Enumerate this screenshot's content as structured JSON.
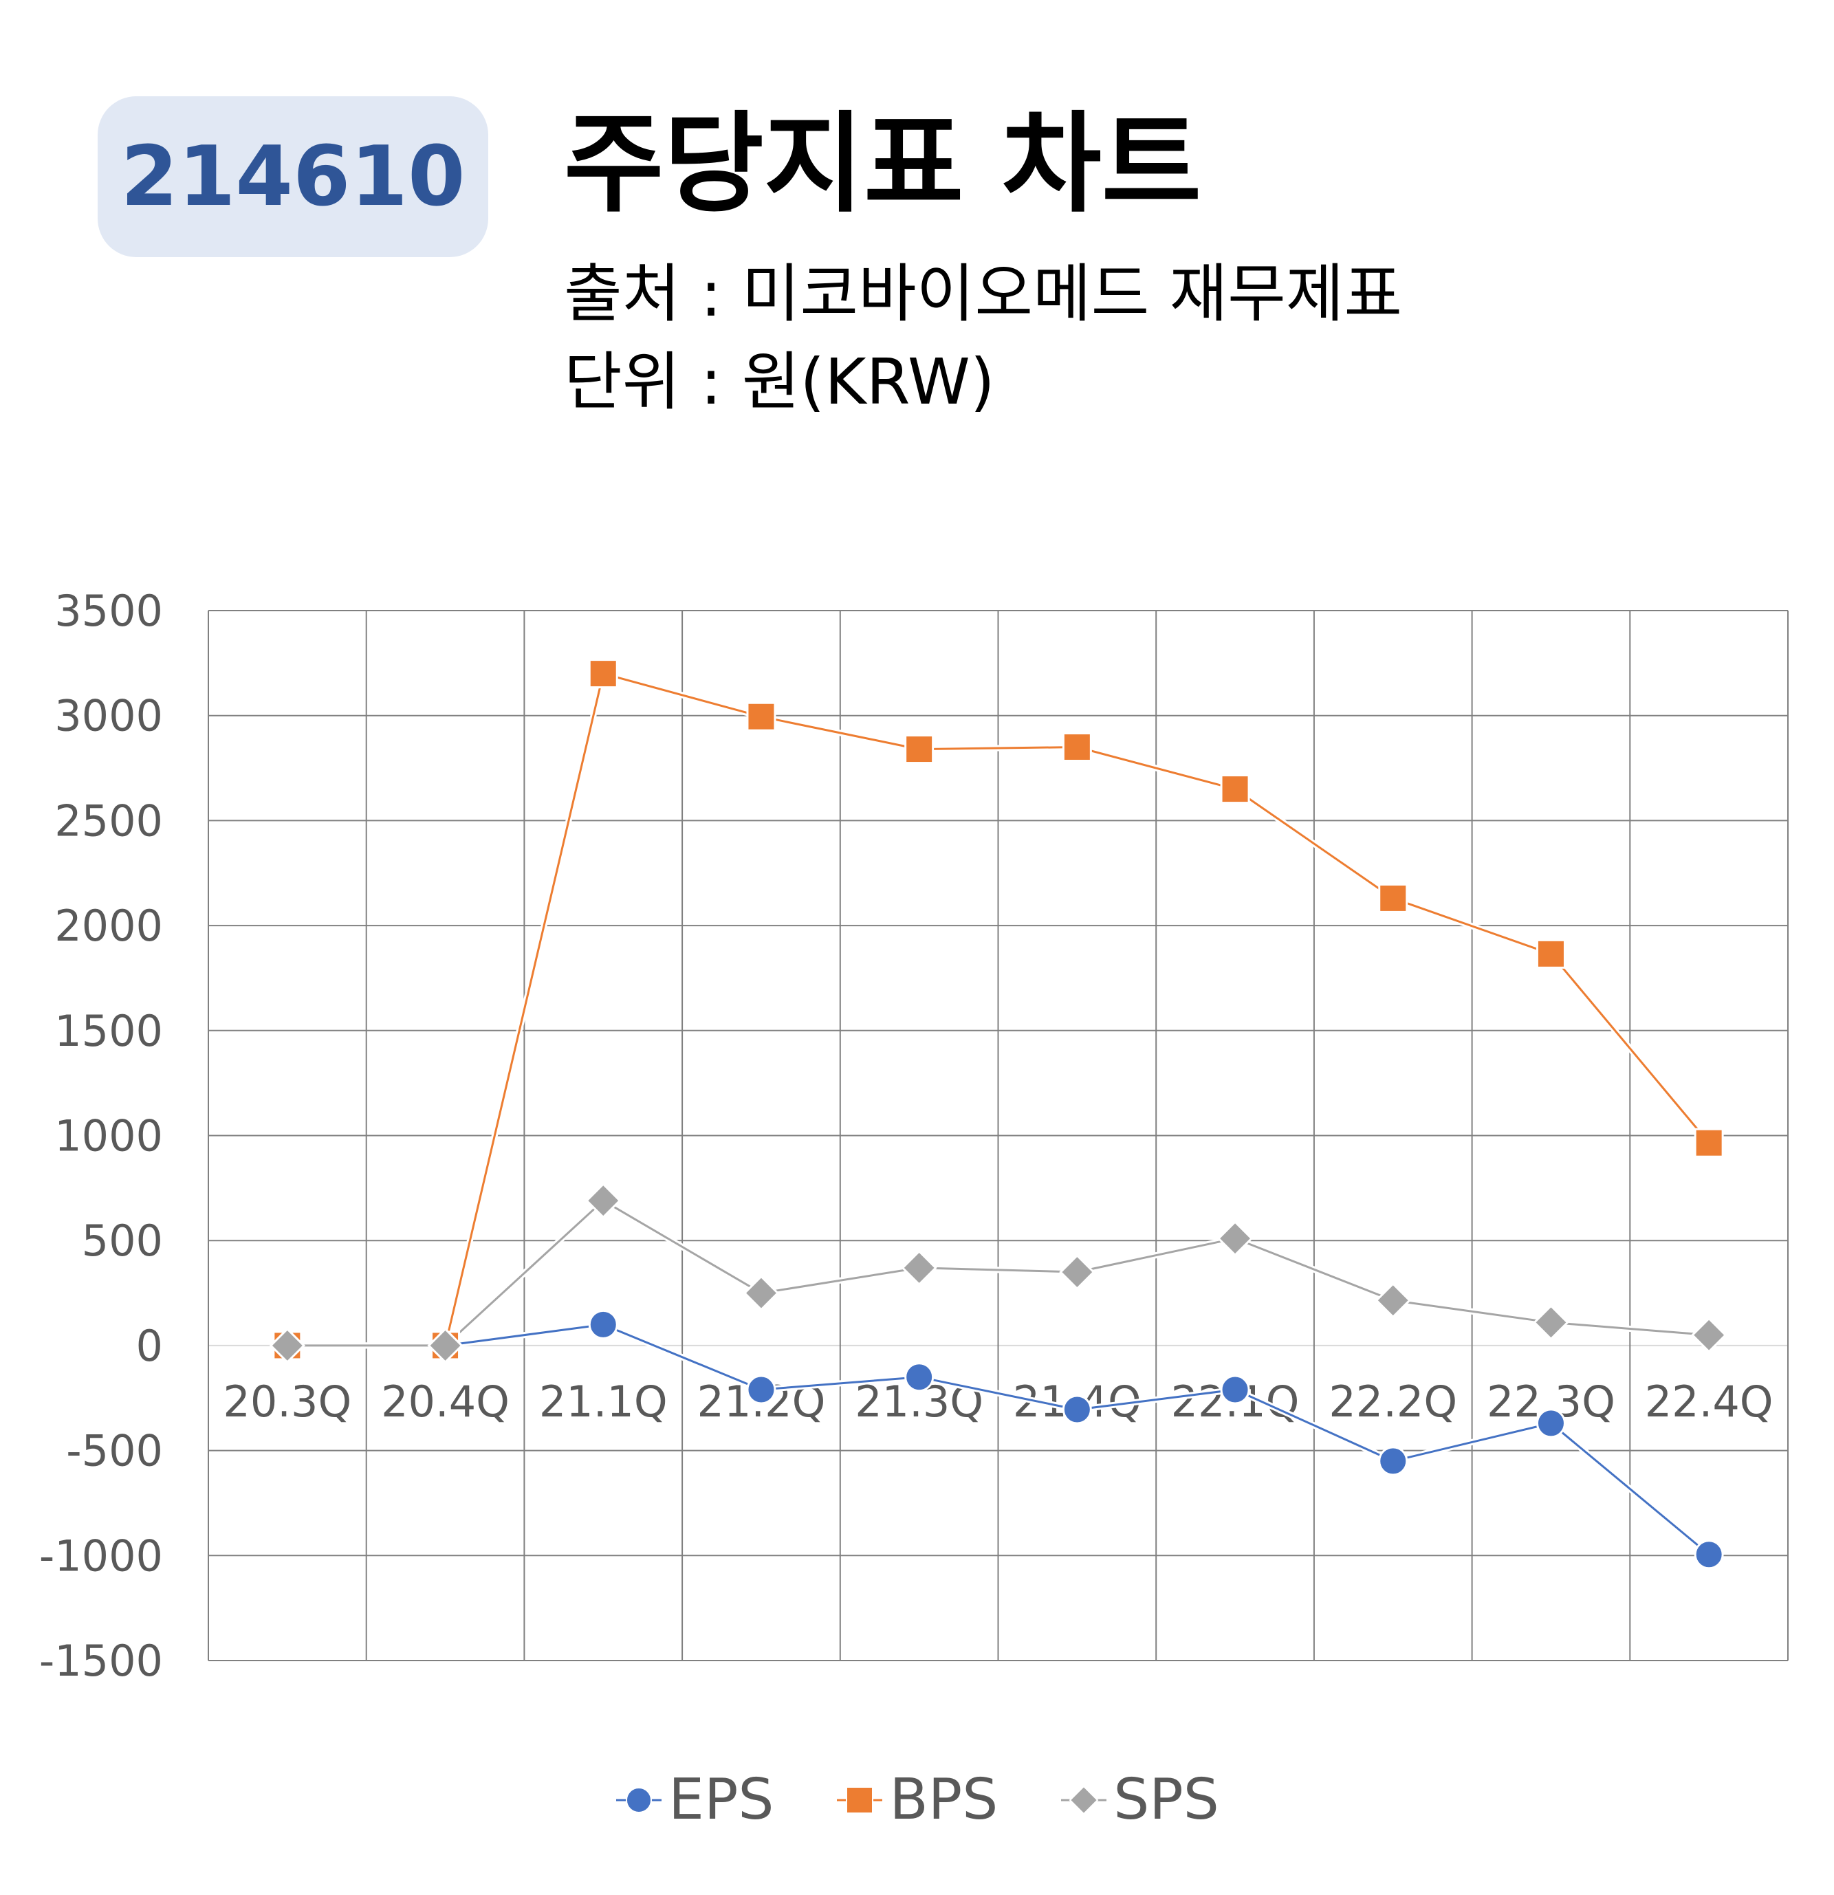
{
  "header": {
    "code": "214610",
    "title": "주당지표 차트",
    "source": "출처 : 미코바이오메드 재무제표",
    "unit": "단위 : 원(KRW)"
  },
  "chart_data": {
    "type": "line",
    "categories": [
      "20.3Q",
      "20.4Q",
      "21.1Q",
      "21.2Q",
      "21.3Q",
      "21.4Q",
      "22.1Q",
      "22.2Q",
      "22.3Q",
      "22.4Q"
    ],
    "series": [
      {
        "name": "EPS",
        "color": "#4472c4",
        "marker": "circle",
        "values": [
          0,
          0,
          100,
          -210,
          -150,
          -305,
          -210,
          -550,
          -370,
          -995
        ]
      },
      {
        "name": "BPS",
        "color": "#ed7d31",
        "marker": "square",
        "values": [
          0,
          0,
          3200,
          2995,
          2840,
          2850,
          2650,
          2130,
          1865,
          965
        ]
      },
      {
        "name": "SPS",
        "color": "#a5a5a5",
        "marker": "diamond",
        "values": [
          0,
          0,
          690,
          250,
          370,
          350,
          510,
          215,
          110,
          50
        ]
      }
    ],
    "yticks": [
      "3500",
      "3000",
      "2500",
      "2000",
      "1500",
      "1000",
      "500",
      "0",
      "-500",
      "-1000",
      "-1500"
    ],
    "ylim": [
      -1500,
      3500
    ],
    "ystep": 500,
    "grid": true,
    "legend_position": "bottom"
  }
}
